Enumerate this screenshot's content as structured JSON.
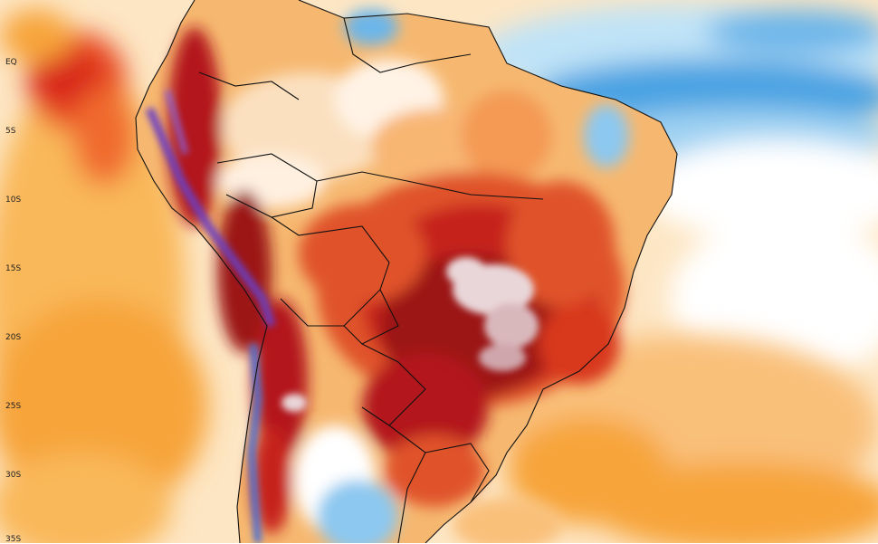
{
  "map": {
    "latitude_labels": [
      "EQ",
      "5S",
      "10S",
      "15S",
      "20S",
      "25S",
      "30S",
      "35S"
    ],
    "palette": {
      "cold_deep": "#2f7fd6",
      "cold": "#8cc8f0",
      "neutral": "#ffffff",
      "warm_light": "#fde3b8",
      "warm": "#f7a43a",
      "hot": "#e0532a",
      "very_hot": "#b3141d",
      "extreme": "#6e0a12",
      "peak": "#e9d6d8",
      "andes_cold": "#6b3fc4"
    }
  }
}
